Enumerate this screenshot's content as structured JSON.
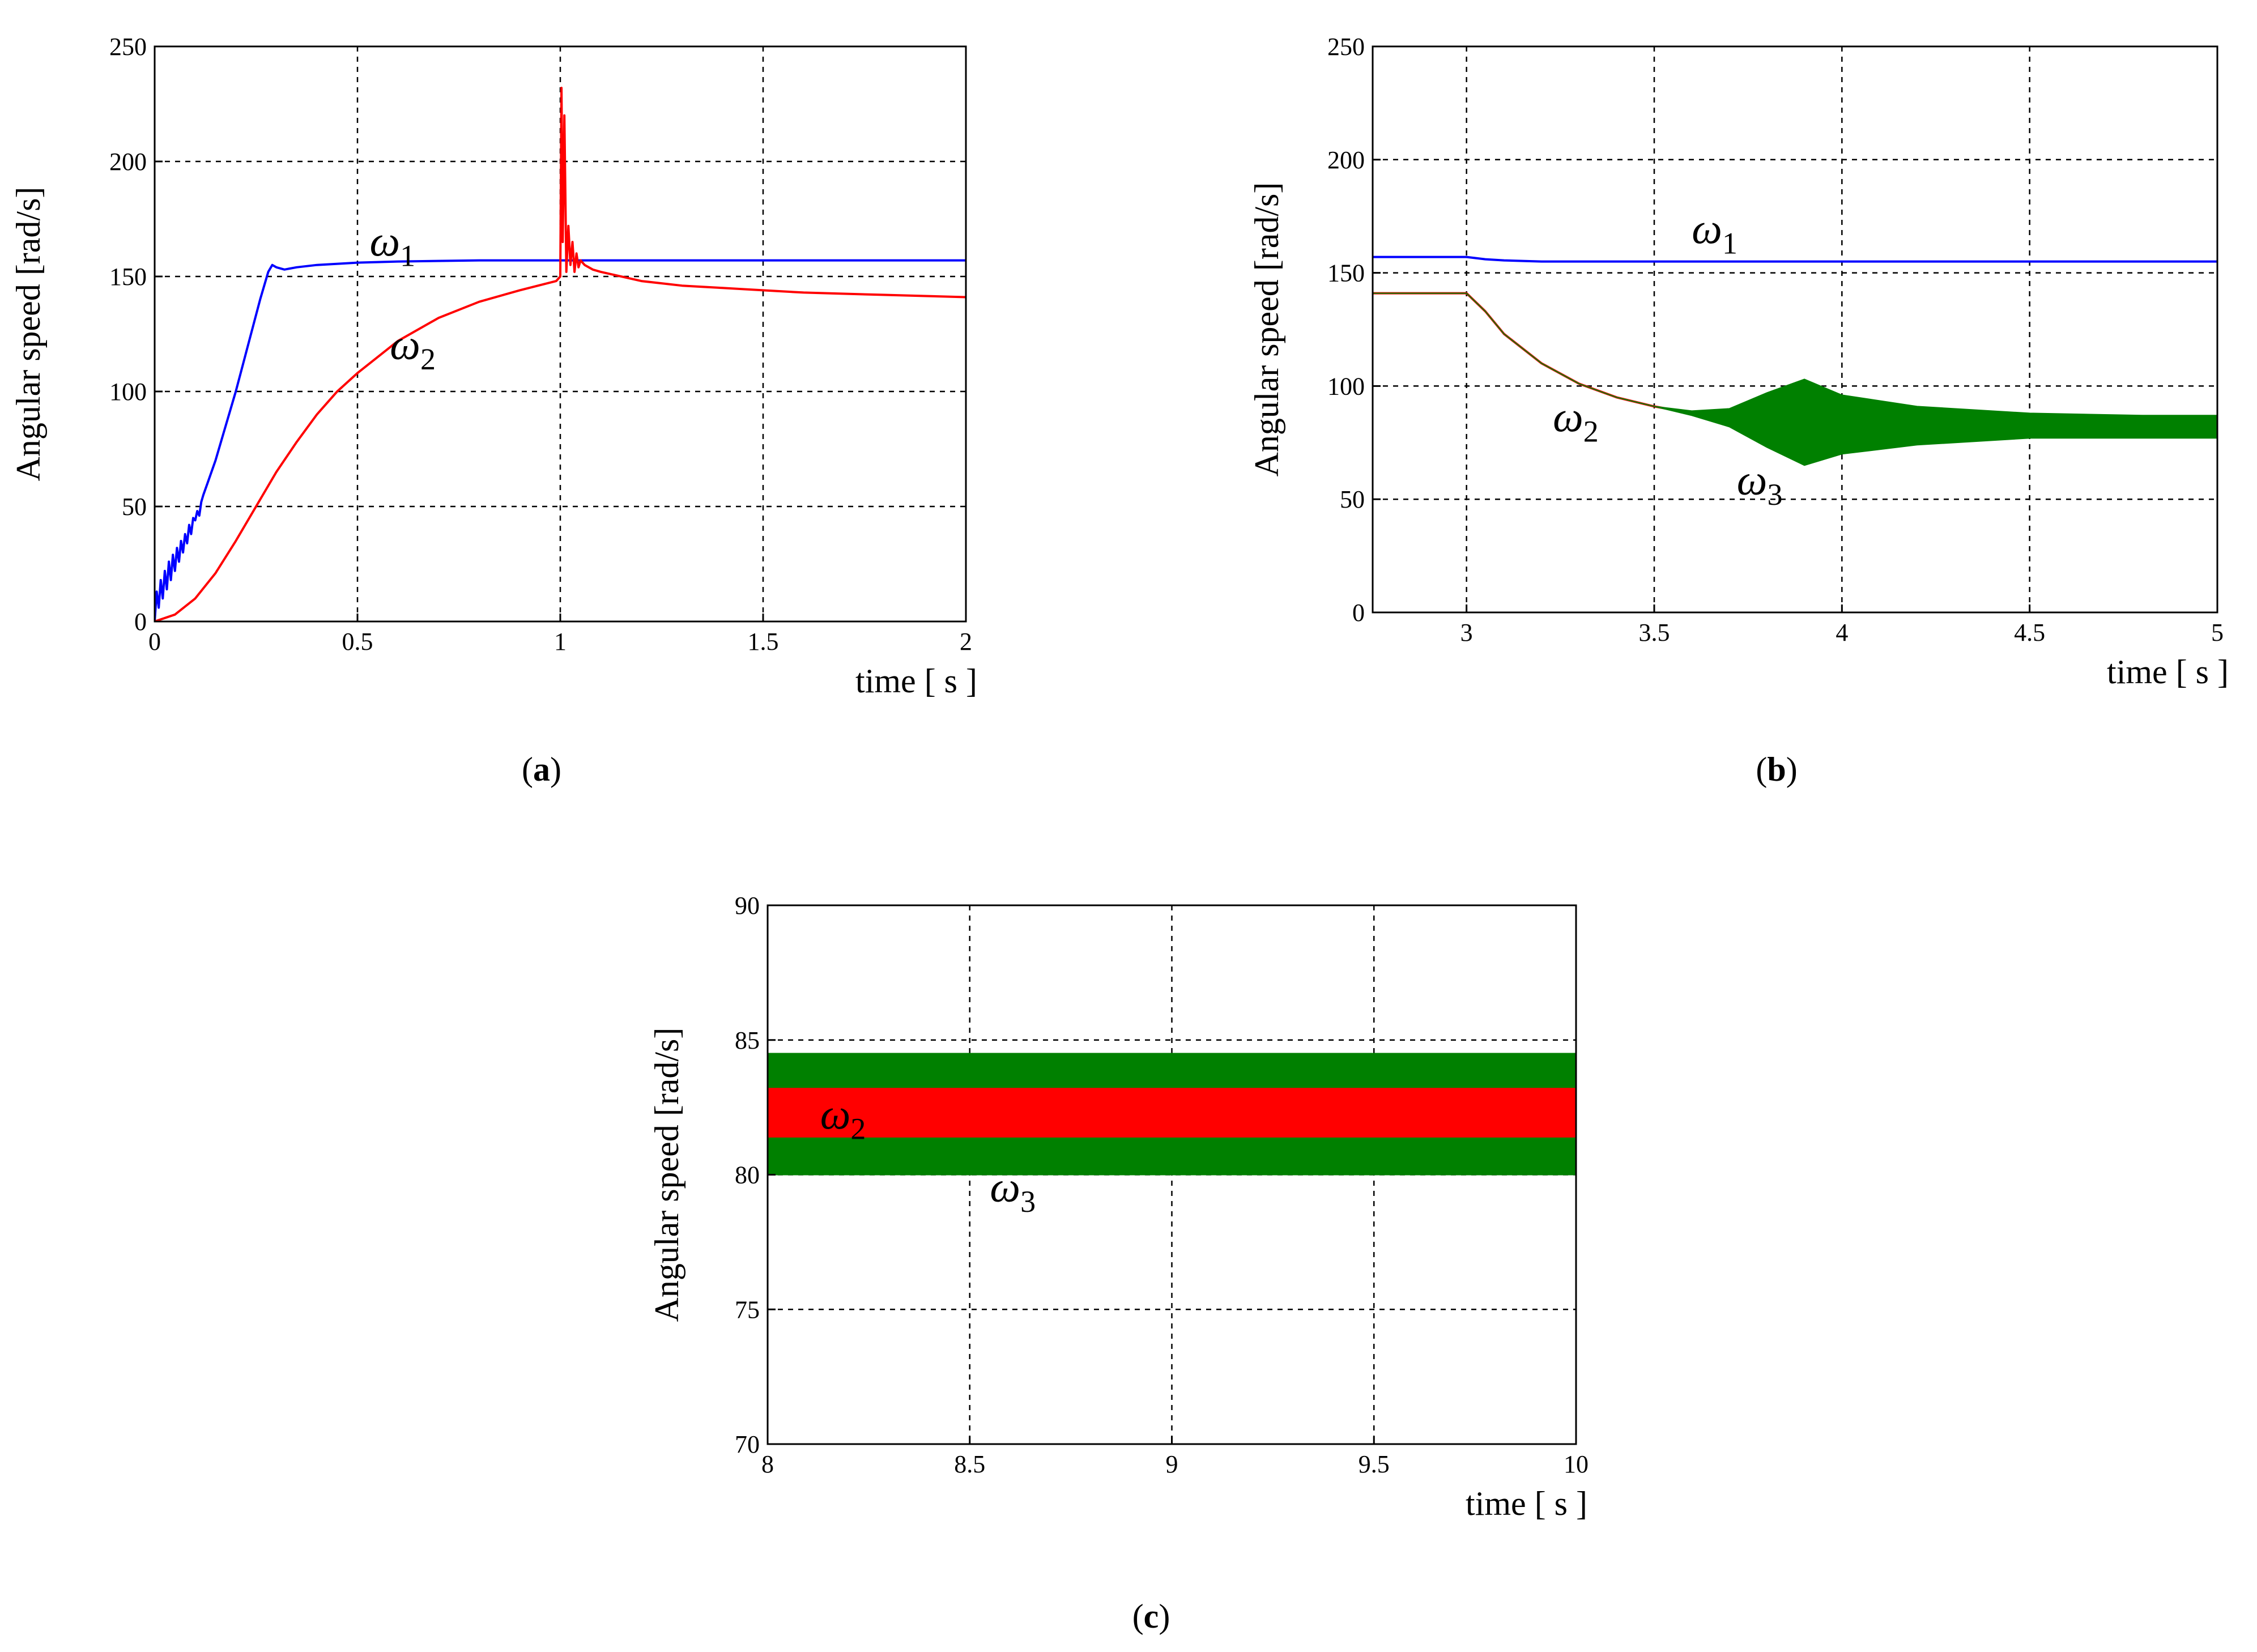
{
  "chart_data": [
    {
      "id": "a",
      "type": "line",
      "panel_label": "a",
      "xlabel": "time  [ s ]",
      "ylabel": "Angular speed  [rad/s]",
      "xlim": [
        0,
        2
      ],
      "ylim": [
        0,
        250
      ],
      "xticks": [
        0,
        0.5,
        1,
        1.5,
        2
      ],
      "yticks": [
        0,
        50,
        100,
        150,
        200,
        250
      ],
      "xtick_labels": [
        "0",
        "0.5",
        "1",
        "1.5",
        "2"
      ],
      "ytick_labels": [
        "0",
        "50",
        "100",
        "150",
        "200",
        "250"
      ],
      "grid": true,
      "series": [
        {
          "name": "ω1",
          "symbol": "ω",
          "sub": "1",
          "color": "#0000ff",
          "x": [
            0,
            0.005,
            0.01,
            0.015,
            0.02,
            0.025,
            0.03,
            0.035,
            0.04,
            0.045,
            0.05,
            0.055,
            0.06,
            0.065,
            0.07,
            0.075,
            0.08,
            0.085,
            0.09,
            0.095,
            0.1,
            0.105,
            0.11,
            0.115,
            0.12,
            0.13,
            0.15,
            0.17,
            0.2,
            0.23,
            0.26,
            0.28,
            0.29,
            0.3,
            0.32,
            0.35,
            0.4,
            0.5,
            0.6,
            0.8,
            1.0,
            1.2,
            1.5,
            1.8,
            2.0
          ],
          "y": [
            0,
            13,
            6,
            18,
            10,
            22,
            14,
            26,
            18,
            29,
            22,
            32,
            26,
            35,
            30,
            38,
            34,
            42,
            38,
            45,
            44,
            48,
            46,
            52,
            55,
            60,
            70,
            82,
            100,
            120,
            140,
            152,
            155,
            154,
            153,
            154,
            155,
            156,
            156.5,
            157,
            157,
            157,
            157,
            157,
            157
          ]
        },
        {
          "name": "ω2",
          "symbol": "ω",
          "sub": "2",
          "color": "#ff0000",
          "x": [
            0,
            0.05,
            0.1,
            0.15,
            0.2,
            0.25,
            0.3,
            0.35,
            0.4,
            0.45,
            0.5,
            0.6,
            0.7,
            0.8,
            0.9,
            0.99,
            1.0,
            1.003,
            1.006,
            1.01,
            1.015,
            1.02,
            1.025,
            1.03,
            1.035,
            1.04,
            1.045,
            1.05,
            1.06,
            1.08,
            1.1,
            1.2,
            1.3,
            1.4,
            1.5,
            1.6,
            1.7,
            1.8,
            1.9,
            2.0
          ],
          "y": [
            0,
            3,
            10,
            21,
            35,
            50,
            65,
            78,
            90,
            100,
            108,
            122,
            132,
            139,
            144,
            148,
            150,
            232,
            165,
            220,
            152,
            172,
            155,
            165,
            152,
            160,
            154,
            157,
            155,
            153,
            152,
            148,
            146,
            145,
            144,
            143,
            142.5,
            142,
            141.5,
            141
          ]
        }
      ],
      "annotations": [
        {
          "series": "ω1",
          "x": 0.53,
          "y": 159
        },
        {
          "series": "ω2",
          "x": 0.58,
          "y": 114
        }
      ]
    },
    {
      "id": "b",
      "type": "line",
      "panel_label": "b",
      "xlabel": "time  [ s ]",
      "ylabel": "Angular speed  [rad/s]",
      "xlim": [
        2.75,
        5
      ],
      "ylim": [
        0,
        250
      ],
      "xticks": [
        3,
        3.5,
        4,
        4.5,
        5
      ],
      "yticks": [
        0,
        50,
        100,
        150,
        200,
        250
      ],
      "xtick_labels": [
        "3",
        "3.5",
        "4",
        "4.5",
        "5"
      ],
      "ytick_labels": [
        "0",
        "50",
        "100",
        "150",
        "200",
        "250"
      ],
      "grid": true,
      "series": [
        {
          "name": "ω1",
          "symbol": "ω",
          "sub": "1",
          "color": "#0000ff",
          "x": [
            2.75,
            3.0,
            3.05,
            3.1,
            3.2,
            3.5,
            4.0,
            4.5,
            5.0
          ],
          "y": [
            157,
            157,
            156,
            155.5,
            155,
            155,
            155,
            155,
            155
          ]
        },
        {
          "name": "ω2",
          "symbol": "ω",
          "sub": "2",
          "color": "#ff0000",
          "x": [
            2.75,
            3.0,
            3.05,
            3.1,
            3.2,
            3.3,
            3.4,
            3.5,
            3.6,
            3.7,
            3.8,
            3.9,
            4.0,
            4.2,
            4.5,
            4.8,
            5.0
          ],
          "y": [
            141,
            141,
            133,
            123,
            110,
            101,
            95,
            91,
            88,
            86,
            85,
            84,
            83,
            83,
            82,
            82,
            82
          ],
          "band_upper": [
            141,
            141,
            133,
            123,
            110,
            101,
            95,
            91,
            88.5,
            88,
            91,
            93,
            89,
            85.5,
            85,
            85,
            85
          ],
          "band_lower": [
            141,
            141,
            133,
            123,
            110,
            101,
            95,
            91,
            87.5,
            84,
            79,
            75,
            77,
            79,
            79,
            79,
            79
          ]
        },
        {
          "name": "ω3",
          "symbol": "ω",
          "sub": "3",
          "color": "#008000",
          "x": [
            2.75,
            3.0,
            3.05,
            3.1,
            3.2,
            3.3,
            3.4,
            3.5,
            3.6,
            3.7,
            3.8,
            3.9,
            4.0,
            4.2,
            4.5,
            4.8,
            5.0
          ],
          "band_upper": [
            141,
            141,
            133,
            123,
            110,
            101,
            95,
            91,
            89,
            90,
            97,
            103,
            96,
            91,
            88,
            87,
            87
          ],
          "band_lower": [
            141,
            141,
            133,
            123,
            110,
            101,
            95,
            91,
            87,
            82,
            73,
            65,
            70,
            74,
            77,
            77,
            77
          ]
        }
      ],
      "annotations": [
        {
          "series": "ω1",
          "x": 3.6,
          "y": 163
        },
        {
          "series": "ω2",
          "x": 3.23,
          "y": 80
        },
        {
          "series": "ω3",
          "x": 3.72,
          "y": 52
        }
      ]
    },
    {
      "id": "c",
      "type": "line",
      "panel_label": "c",
      "xlabel": "time  [ s ]",
      "ylabel": "Angular speed  [rad/s]",
      "xlim": [
        8,
        10
      ],
      "ylim": [
        70,
        90
      ],
      "xticks": [
        8,
        8.5,
        9,
        9.5,
        10
      ],
      "yticks": [
        70,
        75,
        80,
        85,
        90
      ],
      "xtick_labels": [
        "8",
        "8.5",
        "9",
        "9.5",
        "10"
      ],
      "ytick_labels": [
        "70",
        "75",
        "80",
        "85",
        "90"
      ],
      "grid": true,
      "series": [
        {
          "name": "ω3",
          "symbol": "ω",
          "sub": "3",
          "color": "#008000",
          "x": [
            8,
            10
          ],
          "band_upper": [
            84.5,
            84.5
          ],
          "band_lower": [
            80,
            80
          ]
        },
        {
          "name": "ω2",
          "symbol": "ω",
          "sub": "2",
          "color": "#ff0000",
          "x": [
            8,
            10
          ],
          "y": [
            82.3,
            82.3
          ],
          "band_upper": [
            83.2,
            83.2
          ],
          "band_lower": [
            81.4,
            81.4
          ]
        }
      ],
      "annotations": [
        {
          "series": "ω2",
          "x": 8.13,
          "y": 81.7
        },
        {
          "series": "ω3",
          "x": 8.55,
          "y": 79
        }
      ]
    }
  ]
}
